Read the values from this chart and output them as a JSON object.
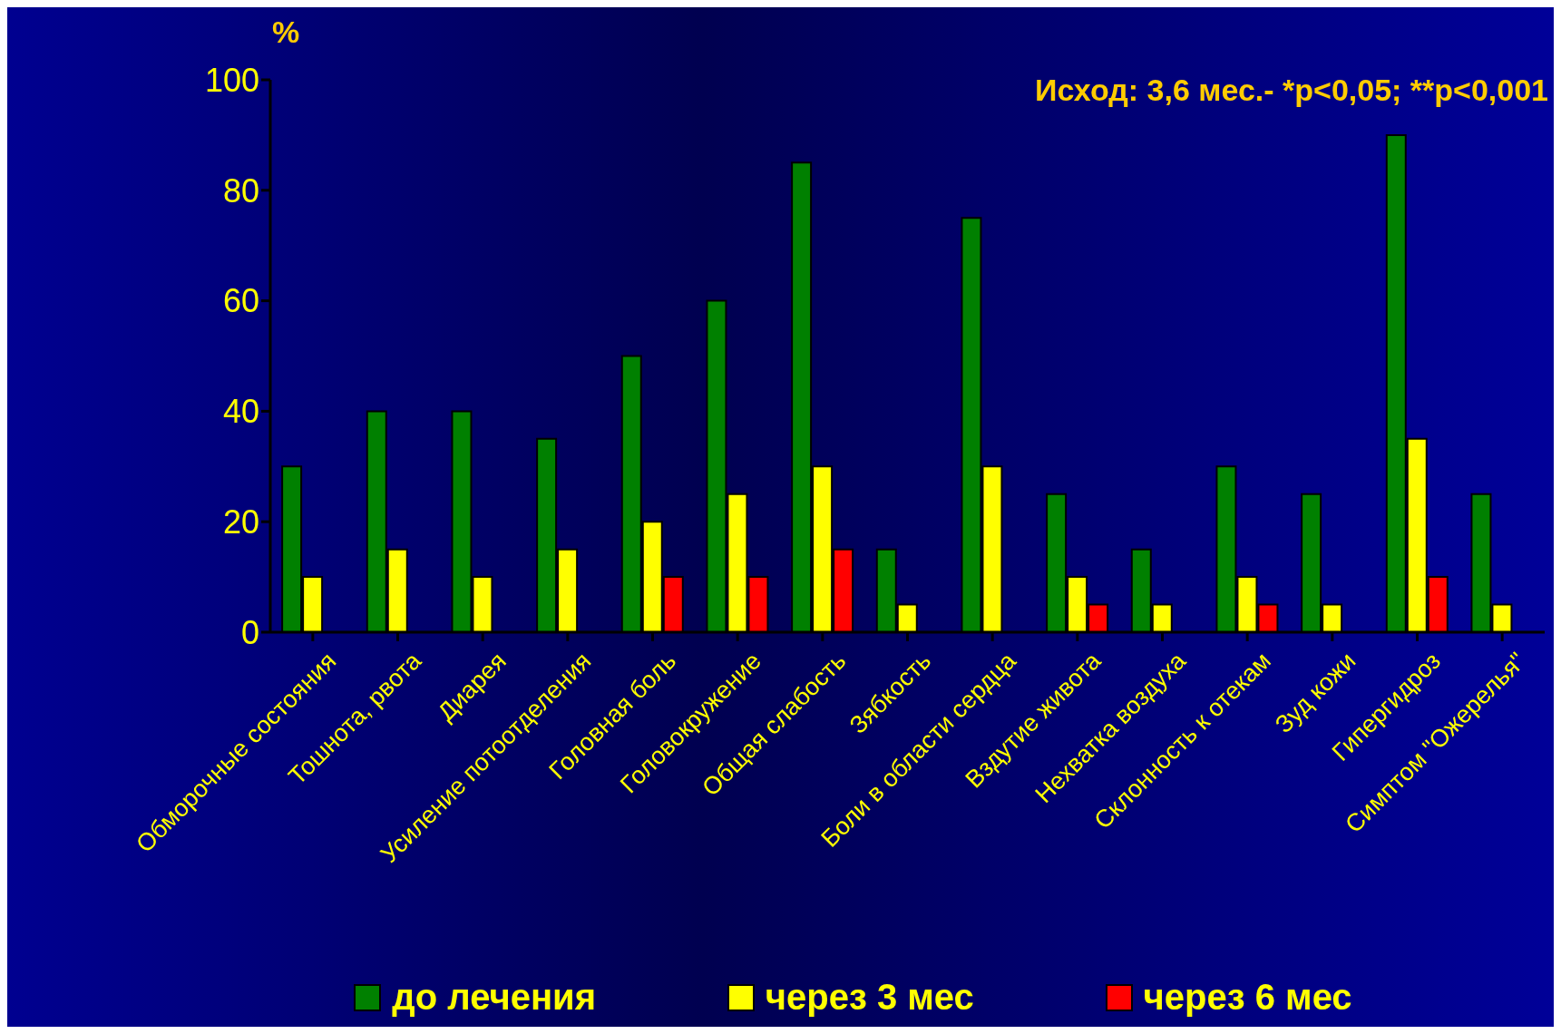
{
  "chart_data": {
    "type": "bar",
    "ylabel": "%",
    "annotations": [
      "Исход: 3,6 мес.- *р<0,05; **р<0,001"
    ],
    "categories": [
      "Обморочные состояния",
      "Тошнота, рвота",
      "Диарея",
      "Усиление потоотделения",
      "Головная боль",
      "Головокружение",
      "Общая слабость",
      "Зябкость",
      "Боли в области сердца",
      "Вздутие живота",
      "Нехватка воздуха",
      "Склонность к отекам",
      "Зуд кожи",
      "Гипергидроз",
      "Симптом \"Ожерелья\""
    ],
    "series": [
      {
        "name": "до лечения",
        "color": "#008000",
        "values": [
          30,
          40,
          40,
          35,
          50,
          60,
          85,
          15,
          75,
          25,
          15,
          30,
          25,
          90,
          25
        ]
      },
      {
        "name": "через 3 мес",
        "color": "#ffff00",
        "values": [
          10,
          15,
          10,
          15,
          20,
          25,
          30,
          5,
          30,
          10,
          5,
          10,
          5,
          35,
          5
        ]
      },
      {
        "name": "через 6 мес",
        "color": "#ff0000",
        "values": [
          null,
          null,
          null,
          null,
          10,
          10,
          15,
          null,
          null,
          5,
          null,
          5,
          null,
          10,
          null
        ]
      }
    ],
    "ylim": [
      0,
      100
    ],
    "yticks": [
      0,
      20,
      40,
      60,
      80,
      100
    ],
    "grid": false,
    "legend": "bottom"
  }
}
